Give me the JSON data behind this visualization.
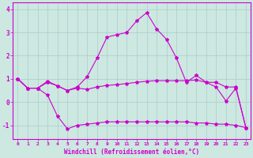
{
  "title": "",
  "xlabel": "Windchill (Refroidissement éolien,°C)",
  "ylabel": "",
  "bg_color": "#cce8e0",
  "line_color": "#cc00cc",
  "grid_color": "#aacccc",
  "xlim": [
    -0.5,
    23.5
  ],
  "ylim": [
    -1.6,
    4.3
  ],
  "yticks": [
    -1,
    0,
    1,
    2,
    3,
    4
  ],
  "xticks": [
    0,
    1,
    2,
    3,
    4,
    5,
    6,
    7,
    8,
    9,
    10,
    11,
    12,
    13,
    14,
    15,
    16,
    17,
    18,
    19,
    20,
    21,
    22,
    23
  ],
  "series1_x": [
    0,
    1,
    2,
    3,
    4,
    5,
    6,
    7,
    8,
    9,
    10,
    11,
    12,
    13,
    14,
    15,
    16,
    17,
    18,
    19,
    20,
    21,
    22,
    23
  ],
  "series1_y": [
    1.0,
    0.6,
    0.6,
    0.9,
    0.7,
    0.5,
    0.65,
    1.1,
    1.9,
    2.8,
    2.9,
    3.0,
    3.5,
    3.85,
    3.15,
    2.7,
    1.9,
    0.85,
    1.15,
    0.85,
    0.65,
    0.05,
    0.6,
    -1.1
  ],
  "series2_x": [
    0,
    1,
    2,
    3,
    4,
    5,
    6,
    7,
    8,
    9,
    10,
    11,
    12,
    13,
    14,
    15,
    16,
    17,
    18,
    19,
    20,
    21,
    22,
    23
  ],
  "series2_y": [
    1.0,
    0.6,
    0.6,
    0.3,
    -0.6,
    -1.15,
    -1.0,
    -0.95,
    -0.9,
    -0.85,
    -0.85,
    -0.85,
    -0.85,
    -0.85,
    -0.85,
    -0.85,
    -0.85,
    -0.85,
    -0.9,
    -0.9,
    -0.95,
    -0.95,
    -1.0,
    -1.1
  ],
  "series3_x": [
    0,
    1,
    2,
    3,
    4,
    5,
    6,
    7,
    8,
    9,
    10,
    11,
    12,
    13,
    14,
    15,
    16,
    17,
    18,
    19,
    20,
    21,
    22,
    23
  ],
  "series3_y": [
    1.0,
    0.6,
    0.6,
    0.85,
    0.7,
    0.5,
    0.6,
    0.55,
    0.65,
    0.72,
    0.75,
    0.8,
    0.85,
    0.9,
    0.92,
    0.92,
    0.92,
    0.92,
    0.95,
    0.85,
    0.85,
    0.65,
    0.65,
    -1.1
  ]
}
